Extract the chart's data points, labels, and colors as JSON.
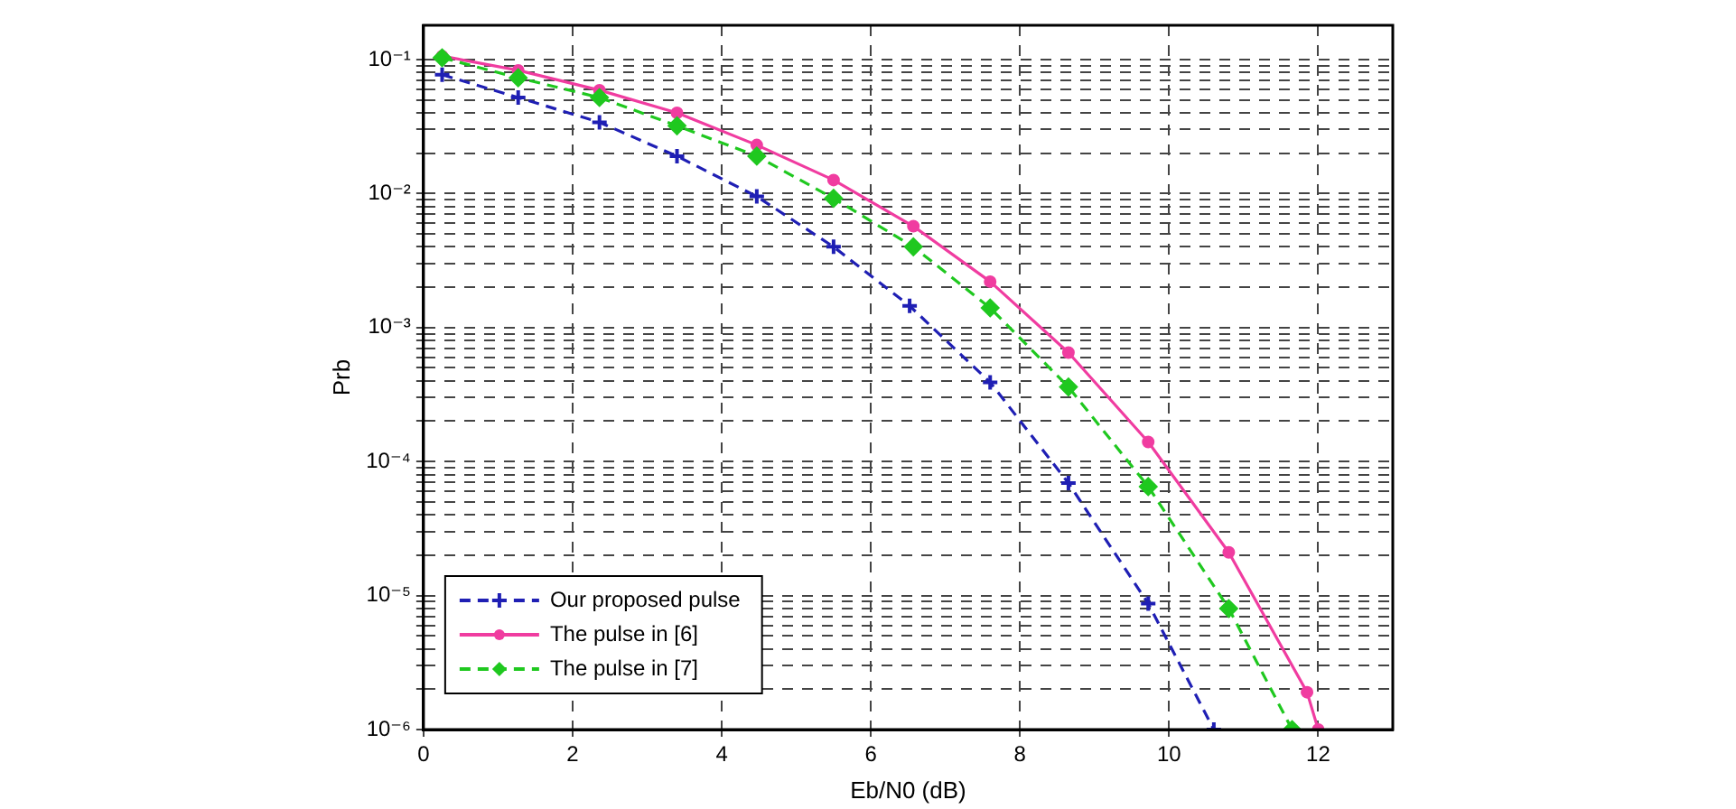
{
  "chart_data": {
    "type": "line",
    "xlabel": "Eb/N0 (dB)",
    "ylabel": "Prb",
    "log": "y",
    "grid": true,
    "legend": "bottom left",
    "xlim": [
      0,
      13
    ],
    "xticks": [
      0,
      2,
      4,
      6,
      8,
      10,
      12
    ],
    "ylim": [
      1e-06,
      0.18
    ],
    "yticks": [
      {
        "value": 1e-06,
        "label": "10⁻⁶"
      },
      {
        "value": 2e-06,
        "label": null
      },
      {
        "value": 3e-06,
        "label": null
      },
      {
        "value": 4e-06,
        "label": null
      },
      {
        "value": 5e-06,
        "label": null
      },
      {
        "value": 6e-06,
        "label": null
      },
      {
        "value": 7e-06,
        "label": null
      },
      {
        "value": 8e-06,
        "label": null
      },
      {
        "value": 9e-06,
        "label": null
      },
      {
        "value": 1e-05,
        "label": "10⁻⁵"
      },
      {
        "value": 2e-05,
        "label": null
      },
      {
        "value": 3e-05,
        "label": null
      },
      {
        "value": 4e-05,
        "label": null
      },
      {
        "value": 5e-05,
        "label": null
      },
      {
        "value": 6e-05,
        "label": null
      },
      {
        "value": 7e-05,
        "label": null
      },
      {
        "value": 8e-05,
        "label": null
      },
      {
        "value": 9e-05,
        "label": null
      },
      {
        "value": 0.0001,
        "label": "10⁻⁴"
      },
      {
        "value": 0.0002,
        "label": null
      },
      {
        "value": 0.0003,
        "label": null
      },
      {
        "value": 0.0004,
        "label": null
      },
      {
        "value": 0.0005,
        "label": null
      },
      {
        "value": 0.0006,
        "label": null
      },
      {
        "value": 0.0007,
        "label": null
      },
      {
        "value": 0.0008,
        "label": null
      },
      {
        "value": 0.0009,
        "label": null
      },
      {
        "value": 0.001,
        "label": "10⁻³"
      },
      {
        "value": 0.002,
        "label": null
      },
      {
        "value": 0.003,
        "label": null
      },
      {
        "value": 0.004,
        "label": null
      },
      {
        "value": 0.005,
        "label": null
      },
      {
        "value": 0.006,
        "label": null
      },
      {
        "value": 0.007,
        "label": null
      },
      {
        "value": 0.008,
        "label": null
      },
      {
        "value": 0.009,
        "label": null
      },
      {
        "value": 0.01,
        "label": "10⁻²"
      },
      {
        "value": 0.02,
        "label": null
      },
      {
        "value": 0.03,
        "label": null
      },
      {
        "value": 0.04,
        "label": null
      },
      {
        "value": 0.05,
        "label": null
      },
      {
        "value": 0.06,
        "label": null
      },
      {
        "value": 0.07,
        "label": null
      },
      {
        "value": 0.08,
        "label": null
      },
      {
        "value": 0.09,
        "label": null
      },
      {
        "value": 0.1,
        "label": "10⁻¹"
      }
    ],
    "series": [
      {
        "name": "Our proposed pulse",
        "color": "#1f1fb4",
        "line_style": "dashed",
        "marker": "cross",
        "x": [
          0.25,
          1.27,
          2.36,
          3.4,
          4.47,
          5.5,
          6.52,
          7.6,
          8.65,
          9.72,
          10.6
        ],
        "values": [
          0.077,
          0.052,
          0.034,
          0.019,
          0.0095,
          0.004,
          0.00145,
          0.00039,
          6.9e-05,
          8.7e-06,
          1e-06
        ]
      },
      {
        "name": "The pulse in [6]",
        "color": "#f03ca0",
        "line_style": "solid",
        "marker": "circle",
        "x": [
          0.25,
          1.27,
          2.36,
          3.4,
          4.47,
          5.5,
          6.57,
          7.6,
          8.65,
          9.72,
          10.8,
          11.85,
          12.0
        ],
        "values": [
          0.106,
          0.083,
          0.059,
          0.04,
          0.023,
          0.0126,
          0.0057,
          0.0022,
          0.00065,
          0.00014,
          2.1e-05,
          1.9e-06,
          1e-06
        ]
      },
      {
        "name": "The pulse in [7]",
        "color": "#1fc81f",
        "line_style": "dashed",
        "marker": "diamond",
        "x": [
          0.25,
          1.27,
          2.36,
          3.4,
          4.47,
          5.5,
          6.57,
          7.6,
          8.65,
          9.72,
          10.8,
          11.65
        ],
        "values": [
          0.103,
          0.073,
          0.052,
          0.032,
          0.019,
          0.0092,
          0.004,
          0.0014,
          0.00036,
          6.5e-05,
          8e-06,
          1e-06
        ]
      }
    ]
  }
}
